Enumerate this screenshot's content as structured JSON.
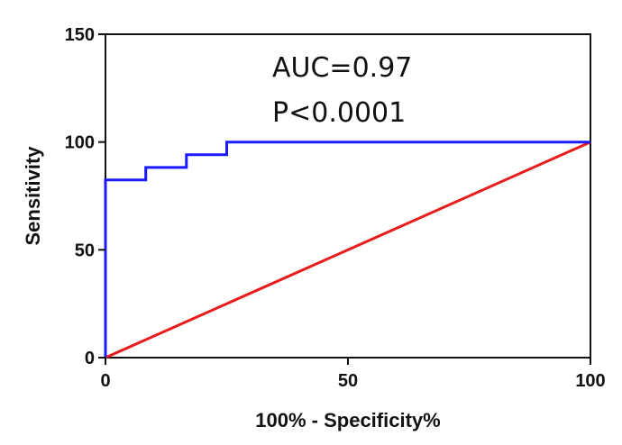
{
  "chart_data": {
    "type": "line",
    "title": "",
    "xlabel": "100% - Specificity%",
    "ylabel": "Sensitivity",
    "xlim": [
      0,
      100
    ],
    "ylim": [
      0,
      150
    ],
    "x_ticks": [
      "0",
      "50",
      "100"
    ],
    "y_ticks": [
      "0",
      "50",
      "100",
      "150"
    ],
    "grid": false,
    "legend": "none",
    "annotations": [
      "AUC=0.97",
      "P<0.0001"
    ],
    "series": [
      {
        "color": "#1a1aff",
        "points": [
          [
            0,
            0
          ],
          [
            0,
            82.4
          ],
          [
            8.3,
            82.4
          ],
          [
            8.3,
            88.2
          ],
          [
            16.7,
            88.2
          ],
          [
            16.7,
            94.1
          ],
          [
            25,
            94.1
          ],
          [
            25,
            100
          ],
          [
            100,
            100
          ]
        ]
      },
      {
        "color": "#e81c1c",
        "points": [
          [
            0,
            0
          ],
          [
            100,
            100
          ]
        ]
      }
    ]
  }
}
